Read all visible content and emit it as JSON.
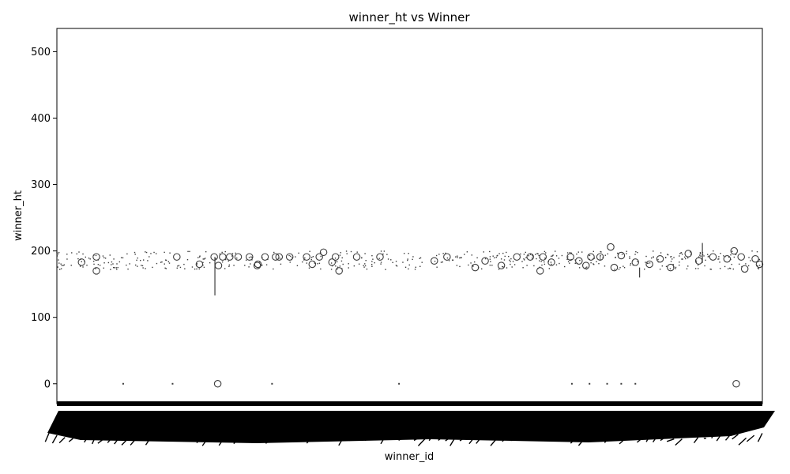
{
  "chart_data": {
    "type": "box",
    "title": "winner_ht vs Winner",
    "xlabel": "winner_id",
    "ylabel": "winner_ht",
    "ylim": [
      -30,
      535
    ],
    "yticks": [
      0,
      100,
      200,
      300,
      400,
      500
    ],
    "grid": false,
    "legend": "none",
    "colors": {
      "box_edge": "#3d3d3d",
      "tick_band": "#000000",
      "background": "#ffffff"
    },
    "notes": {
      "x_tick_labels": "hundreds of overlapping rotated winner_id labels rendered as an illegible black band"
    },
    "outliers": [
      {
        "x": 0.035,
        "y": 183
      },
      {
        "x": 0.056,
        "y": 170
      },
      {
        "x": 0.056,
        "y": 191
      },
      {
        "x": 0.17,
        "y": 191
      },
      {
        "x": 0.202,
        "y": 180
      },
      {
        "x": 0.223,
        "y": 191
      },
      {
        "x": 0.228,
        "y": 0
      },
      {
        "x": 0.229,
        "y": 178
      },
      {
        "x": 0.235,
        "y": 191
      },
      {
        "x": 0.245,
        "y": 191
      },
      {
        "x": 0.257,
        "y": 191
      },
      {
        "x": 0.273,
        "y": 191
      },
      {
        "x": 0.284,
        "y": 178
      },
      {
        "x": 0.285,
        "y": 180
      },
      {
        "x": 0.295,
        "y": 191
      },
      {
        "x": 0.31,
        "y": 191
      },
      {
        "x": 0.315,
        "y": 191
      },
      {
        "x": 0.33,
        "y": 191
      },
      {
        "x": 0.354,
        "y": 191
      },
      {
        "x": 0.362,
        "y": 180
      },
      {
        "x": 0.372,
        "y": 191
      },
      {
        "x": 0.378,
        "y": 198
      },
      {
        "x": 0.39,
        "y": 183
      },
      {
        "x": 0.395,
        "y": 191
      },
      {
        "x": 0.4,
        "y": 170
      },
      {
        "x": 0.425,
        "y": 191
      },
      {
        "x": 0.458,
        "y": 191
      },
      {
        "x": 0.535,
        "y": 185
      },
      {
        "x": 0.553,
        "y": 191
      },
      {
        "x": 0.593,
        "y": 175
      },
      {
        "x": 0.607,
        "y": 185
      },
      {
        "x": 0.63,
        "y": 178
      },
      {
        "x": 0.652,
        "y": 191
      },
      {
        "x": 0.671,
        "y": 191
      },
      {
        "x": 0.685,
        "y": 170
      },
      {
        "x": 0.689,
        "y": 191
      },
      {
        "x": 0.701,
        "y": 183
      },
      {
        "x": 0.728,
        "y": 191
      },
      {
        "x": 0.74,
        "y": 185
      },
      {
        "x": 0.75,
        "y": 178
      },
      {
        "x": 0.757,
        "y": 191
      },
      {
        "x": 0.77,
        "y": 191
      },
      {
        "x": 0.785,
        "y": 206
      },
      {
        "x": 0.79,
        "y": 175
      },
      {
        "x": 0.8,
        "y": 193
      },
      {
        "x": 0.82,
        "y": 183
      },
      {
        "x": 0.84,
        "y": 180
      },
      {
        "x": 0.855,
        "y": 188
      },
      {
        "x": 0.87,
        "y": 175
      },
      {
        "x": 0.895,
        "y": 196
      },
      {
        "x": 0.91,
        "y": 185
      },
      {
        "x": 0.93,
        "y": 191
      },
      {
        "x": 0.95,
        "y": 188
      },
      {
        "x": 0.96,
        "y": 200
      },
      {
        "x": 0.963,
        "y": 0
      },
      {
        "x": 0.97,
        "y": 191
      },
      {
        "x": 0.975,
        "y": 173
      },
      {
        "x": 0.99,
        "y": 188
      },
      {
        "x": 0.996,
        "y": 180
      }
    ],
    "zero_marks": [
      0.094,
      0.164,
      0.305,
      0.485,
      0.73,
      0.755,
      0.78,
      0.8,
      0.82
    ]
  }
}
